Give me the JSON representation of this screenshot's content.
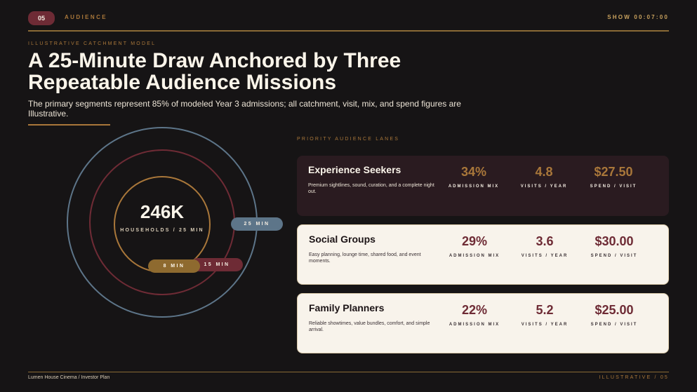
{
  "header": {
    "slide_number": "05",
    "section": "AUDIENCE",
    "show_time": "SHOW 00:07:00"
  },
  "hero": {
    "kicker": "ILLUSTRATIVE CATCHMENT MODEL",
    "title": "A 25-Minute Draw Anchored by Three Repeatable Audience Missions",
    "subtitle": "The primary segments represent 85% of modeled Year 3 admissions; all catchment, visit, mix, and spend figures are Illustrative."
  },
  "catchment": {
    "households_value": "246K",
    "households_label": "HOUSEHOLDS / 25 MIN",
    "rings": [
      {
        "label": "25 MIN",
        "color": "#5d7589"
      },
      {
        "label": "15 MIN",
        "color": "#6e2b35"
      },
      {
        "label": "8 MIN",
        "color": "#a9773a"
      }
    ]
  },
  "lanes": {
    "heading": "PRIORITY AUDIENCE LANES",
    "metric_labels": {
      "mix": "ADMISSION MIX",
      "visits": "VISITS / YEAR",
      "spend": "SPEND / VISIT"
    },
    "items": [
      {
        "name": "Experience Seekers",
        "description": "Premium sightlines, sound, curation, and a complete night out.",
        "mix": "34%",
        "visits": "4.8",
        "spend": "$27.50",
        "style": "dark"
      },
      {
        "name": "Social Groups",
        "description": "Easy planning, lounge time, shared food, and event moments.",
        "mix": "29%",
        "visits": "3.6",
        "spend": "$30.00",
        "style": "light"
      },
      {
        "name": "Family Planners",
        "description": "Reliable showtimes, value bundles, comfort, and simple arrival.",
        "mix": "22%",
        "visits": "5.2",
        "spend": "$25.00",
        "style": "light"
      }
    ]
  },
  "footer": {
    "left": "Lumen House Cinema / Investor Plan",
    "right": "ILLUSTRATIVE / 05"
  },
  "colors": {
    "background": "#161415",
    "gold": "#a9773a",
    "burgundy": "#6e2b35",
    "slate": "#5d7589",
    "cream": "#f8f3eb"
  }
}
